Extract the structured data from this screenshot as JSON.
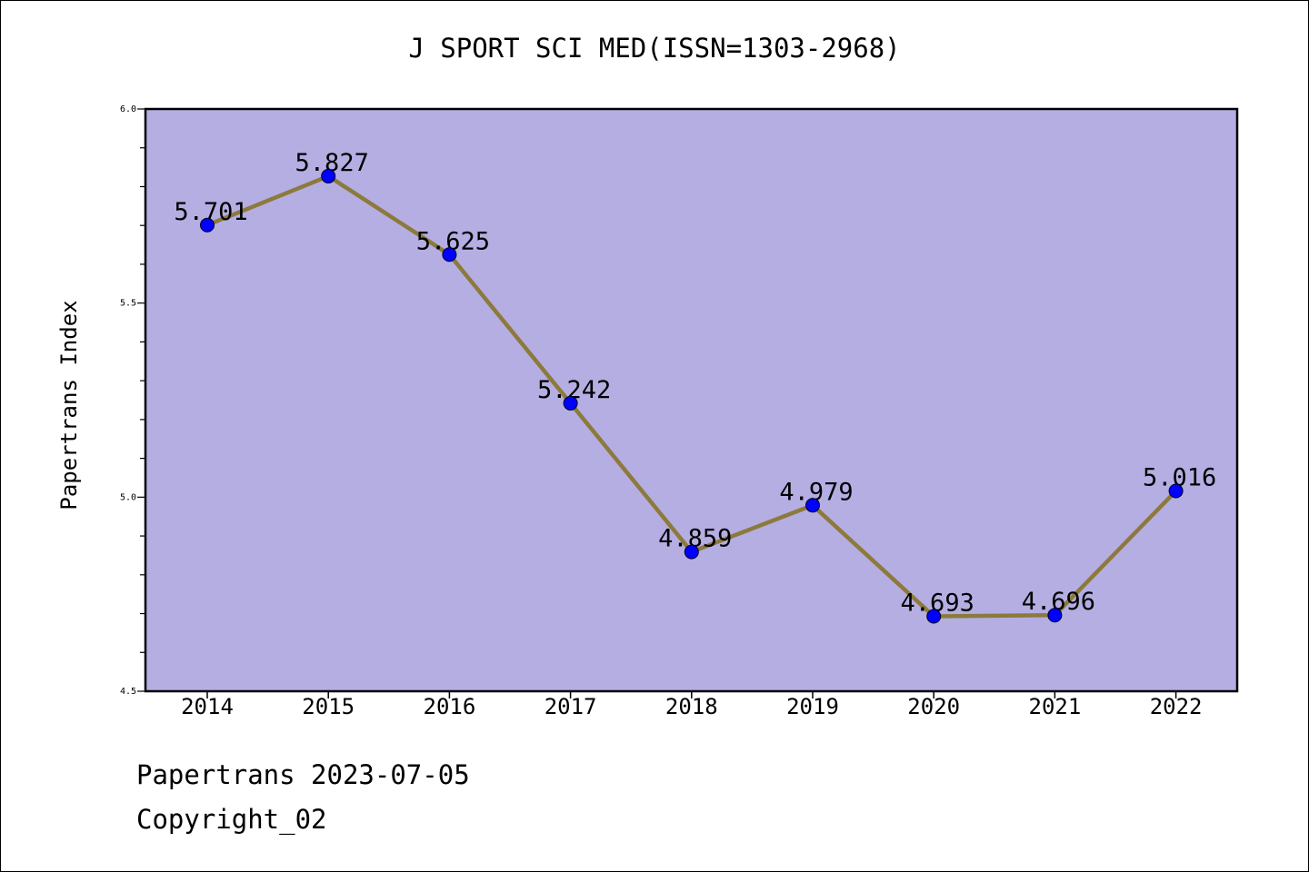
{
  "chart_data": {
    "type": "line",
    "title": "J SPORT SCI MED(ISSN=1303-2968)",
    "xlabel": "",
    "ylabel": "Papertrans Index",
    "x": [
      "2014",
      "2015",
      "2016",
      "2017",
      "2018",
      "2019",
      "2020",
      "2021",
      "2022"
    ],
    "values": [
      5.701,
      5.827,
      5.625,
      5.242,
      4.859,
      4.979,
      4.693,
      4.696,
      5.016
    ],
    "data_labels": [
      "5.701",
      "5.827",
      "5.625",
      "5.242",
      "4.859",
      "4.979",
      "4.693",
      "4.696",
      "5.016"
    ],
    "ylim": [
      4.5,
      6.0
    ],
    "yticks": [
      "4.5",
      "5.0",
      "5.5",
      "6.0"
    ],
    "grid": false,
    "colors": {
      "plot_background": "#b5aee3",
      "line": "#8c7a3c",
      "marker": "#0000ff"
    }
  },
  "footer": {
    "line1": "Papertrans 2023-07-05",
    "line2": "Copyright_02"
  }
}
